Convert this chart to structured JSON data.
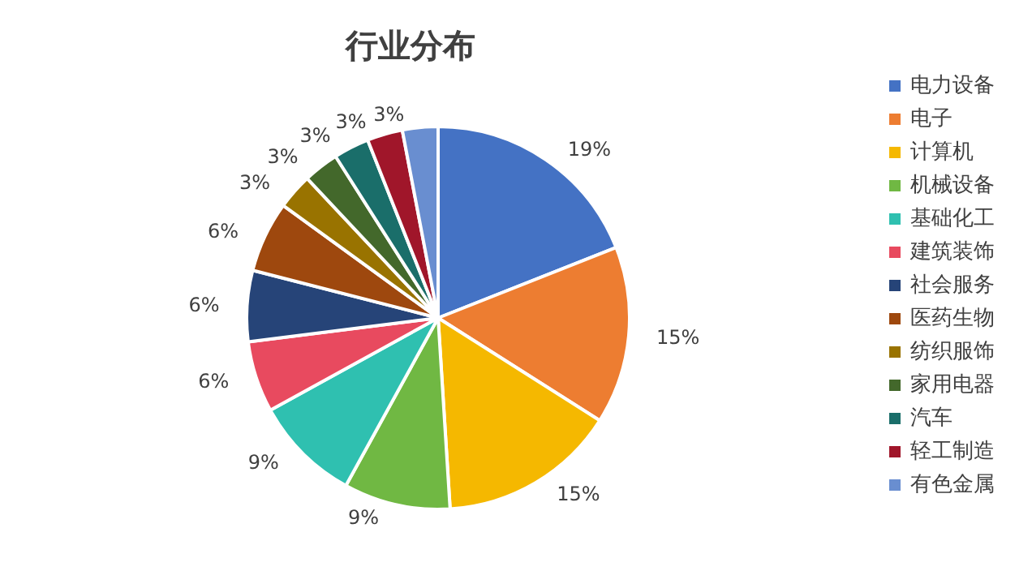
{
  "chart_data": {
    "type": "pie",
    "title": "行业分布",
    "categories": [
      "电力设备",
      "电子",
      "计算机",
      "机械设备",
      "基础化工",
      "建筑装饰",
      "社会服务",
      "医药生物",
      "纺织服饰",
      "家用电器",
      "汽车",
      "轻工制造",
      "有色金属"
    ],
    "values": [
      19,
      15,
      15,
      9,
      9,
      6,
      6,
      6,
      3,
      3,
      3,
      3,
      3
    ],
    "colors": [
      "#4472c4",
      "#ed7d31",
      "#f5b800",
      "#70b843",
      "#2fc0b0",
      "#e84a5f",
      "#264478",
      "#9e480e",
      "#997300",
      "#43682b",
      "#1a6e6a",
      "#a0162a",
      "#698ed0"
    ],
    "value_labels": [
      "19%",
      "15%",
      "15%",
      "9%",
      "9%",
      "6%",
      "6%",
      "6%",
      "3%",
      "3%",
      "3%",
      "3%",
      "3%"
    ],
    "legend": "right"
  }
}
